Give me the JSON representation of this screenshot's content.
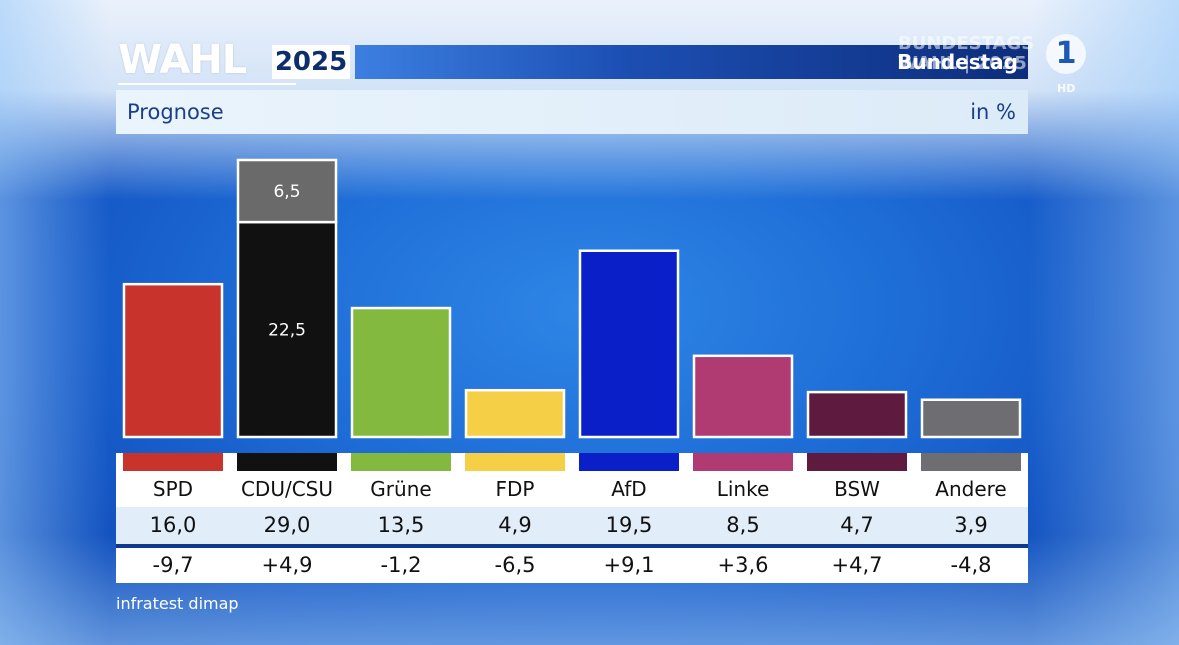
{
  "header": {
    "logo_word": "WAHL",
    "logo_year": "2025",
    "bar_title": "Bundestag",
    "watermark_line1": "BUNDESTAGS",
    "watermark_line2": "WAHL | 2025",
    "channel_logo": "1",
    "channel_hd": "HD"
  },
  "subheader": {
    "label": "Prognose",
    "unit": "in %"
  },
  "source": "infratest dimap",
  "chart_data": {
    "type": "bar",
    "title": "Prognose",
    "ylabel": "in %",
    "ylim": [
      0,
      29
    ],
    "categories": [
      "SPD",
      "CDU/CSU",
      "Grüne",
      "FDP",
      "AfD",
      "Linke",
      "BSW",
      "Andere"
    ],
    "values": [
      16.0,
      29.0,
      13.5,
      4.9,
      19.5,
      8.5,
      4.7,
      3.9
    ],
    "values_text": [
      "16,0",
      "29,0",
      "13,5",
      "4,9",
      "19,5",
      "8,5",
      "4,7",
      "3,9"
    ],
    "changes_text": [
      "-9,7",
      "+4,9",
      "-1,2",
      "-6,5",
      "+9,1",
      "+3,6",
      "+4,7",
      "-4,8"
    ],
    "colors": [
      "#c8332b",
      "#111111",
      "#84b93f",
      "#f5cf45",
      "#0a1fc7",
      "#b03a72",
      "#5e1a3f",
      "#6e6e72"
    ],
    "stacked_split": {
      "category": "CDU/CSU",
      "segments": [
        {
          "value": 22.5,
          "label": "22,5",
          "color": "#111111"
        },
        {
          "value": 6.5,
          "label": "6,5",
          "color": "#6a6a6a"
        }
      ]
    },
    "grid": false,
    "legend": "none"
  }
}
